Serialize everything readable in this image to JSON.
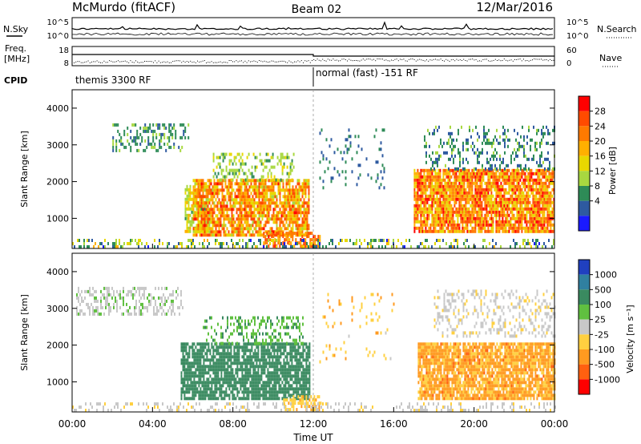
{
  "header": {
    "title": "McMurdo (fitACF)",
    "beam": "Beam 02",
    "date": "12/Mar/2016"
  },
  "noise_panel": {
    "left_label": "N.Sky",
    "right_label": "N.Search",
    "y_ticks": [
      "10^5",
      "10^0"
    ]
  },
  "freq_panel": {
    "left_label_1": "Freq.",
    "left_label_2": "[MHz]",
    "right_label": "Nave",
    "left_ticks": [
      "18",
      "8"
    ],
    "right_ticks": [
      "60",
      "0"
    ]
  },
  "cpid": {
    "label": "CPID",
    "mode1": "themis 3300 RF",
    "mode2": "normal (fast) -151 RF",
    "change_time": "12:00"
  },
  "chart_data": [
    {
      "type": "heatmap",
      "name": "power",
      "ylabel": "Slant Range [km]",
      "colorbar_label": "Power [dB]",
      "ylim": [
        180,
        4500
      ],
      "yticks": [
        1000,
        2000,
        3000,
        4000
      ],
      "colorbar_ticks": [
        "28",
        "24",
        "20",
        "16",
        "12",
        "8",
        "4"
      ],
      "colorbar_colors": [
        "#ff0000",
        "#ff4b00",
        "#ff7a00",
        "#ffb000",
        "#e8d800",
        "#a8d840",
        "#2e8b57",
        "#2e5aa0",
        "#1a1aff"
      ],
      "blobs": [
        {
          "t0": 2.0,
          "t1": 5.8,
          "r0": 2800,
          "r1": 3500,
          "v0": 0.15,
          "v1": 0.35,
          "d": 0.35
        },
        {
          "t0": 5.6,
          "t1": 6.8,
          "r0": 600,
          "r1": 1900,
          "v0": 0.3,
          "v1": 0.6,
          "d": 0.7
        },
        {
          "t0": 6.0,
          "t1": 11.8,
          "r0": 500,
          "r1": 2000,
          "v0": 0.4,
          "v1": 0.95,
          "d": 0.8
        },
        {
          "t0": 7.0,
          "t1": 11.0,
          "r0": 2000,
          "r1": 2700,
          "v0": 0.25,
          "v1": 0.5,
          "d": 0.35
        },
        {
          "t0": 9.5,
          "t1": 12.3,
          "r0": 200,
          "r1": 600,
          "v0": 0.6,
          "v1": 0.95,
          "d": 0.6
        },
        {
          "t0": 12.3,
          "t1": 15.5,
          "r0": 1700,
          "r1": 3400,
          "v0": 0.1,
          "v1": 0.3,
          "d": 0.08
        },
        {
          "t0": 17.0,
          "t1": 24.0,
          "r0": 600,
          "r1": 2300,
          "v0": 0.45,
          "v1": 1.0,
          "d": 0.85
        },
        {
          "t0": 17.5,
          "t1": 24.0,
          "r0": 2300,
          "r1": 3500,
          "v0": 0.1,
          "v1": 0.35,
          "d": 0.25
        },
        {
          "t0": 0.0,
          "t1": 24.0,
          "r0": 180,
          "r1": 400,
          "v0": 0.05,
          "v1": 0.6,
          "d": 0.3
        }
      ]
    },
    {
      "type": "heatmap",
      "name": "velocity",
      "ylabel": "Slant Range [km]",
      "colorbar_label": "Velocity [m s⁻¹]",
      "ylim": [
        180,
        4500
      ],
      "yticks": [
        1000,
        2000,
        3000,
        4000
      ],
      "colorbar_ticks": [
        "1000",
        "500",
        "100",
        "25",
        "-25",
        "-100",
        "-500",
        "-1000"
      ],
      "colorbar_colors": [
        "#2040c0",
        "#3080a0",
        "#3a8a60",
        "#60c040",
        "#c8c8c8",
        "#ffd040",
        "#ff9a20",
        "#ff6010",
        "#ff0000"
      ],
      "blobs": [
        {
          "t0": 0.2,
          "t1": 5.5,
          "r0": 2800,
          "r1": 3500,
          "v0": 0.42,
          "v1": 0.5,
          "d": 0.4
        },
        {
          "t0": 5.4,
          "t1": 11.8,
          "r0": 500,
          "r1": 2000,
          "v0": 0.22,
          "v1": 0.3,
          "d": 0.8
        },
        {
          "t0": 6.5,
          "t1": 11.5,
          "r0": 2000,
          "r1": 2700,
          "v0": 0.28,
          "v1": 0.4,
          "d": 0.3
        },
        {
          "t0": 10.5,
          "t1": 12.4,
          "r0": 200,
          "r1": 600,
          "v0": 0.55,
          "v1": 0.72,
          "d": 0.5
        },
        {
          "t0": 12.3,
          "t1": 16.0,
          "r0": 1500,
          "r1": 3400,
          "v0": 0.55,
          "v1": 0.75,
          "d": 0.06
        },
        {
          "t0": 17.2,
          "t1": 24.0,
          "r0": 500,
          "r1": 2000,
          "v0": 0.62,
          "v1": 0.82,
          "d": 0.85
        },
        {
          "t0": 18.0,
          "t1": 24.0,
          "r0": 2200,
          "r1": 3500,
          "v0": 0.45,
          "v1": 0.6,
          "d": 0.25
        },
        {
          "t0": 0.0,
          "t1": 24.0,
          "r0": 180,
          "r1": 400,
          "v0": 0.45,
          "v1": 0.6,
          "d": 0.25
        }
      ]
    }
  ],
  "x_axis": {
    "label": "Time UT",
    "ticks": [
      "00:00",
      "04:00",
      "08:00",
      "12:00",
      "16:00",
      "20:00",
      "00:00"
    ]
  }
}
